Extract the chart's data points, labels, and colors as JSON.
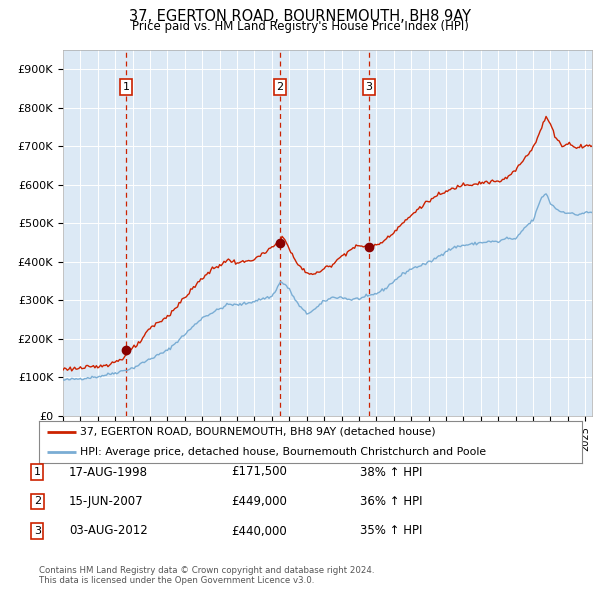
{
  "title": "37, EGERTON ROAD, BOURNEMOUTH, BH8 9AY",
  "subtitle": "Price paid vs. HM Land Registry's House Price Index (HPI)",
  "background_color": "#ffffff",
  "plot_bg_color": "#dce9f5",
  "ylim": [
    0,
    950000
  ],
  "yticks": [
    0,
    100000,
    200000,
    300000,
    400000,
    500000,
    600000,
    700000,
    800000,
    900000
  ],
  "ytick_labels": [
    "£0",
    "£100K",
    "£200K",
    "£300K",
    "£400K",
    "£500K",
    "£600K",
    "£700K",
    "£800K",
    "£900K"
  ],
  "xlim_start": 1995.0,
  "xlim_end": 2025.4,
  "sale_dates": [
    1998.622,
    2007.458,
    2012.586
  ],
  "sale_prices": [
    171500,
    449000,
    440000
  ],
  "sale_labels": [
    "1",
    "2",
    "3"
  ],
  "hpi_color": "#7aadd4",
  "price_color": "#cc2200",
  "sale_marker_color": "#880000",
  "vline_color": "#cc2200",
  "legend_entries": [
    "37, EGERTON ROAD, BOURNEMOUTH, BH8 9AY (detached house)",
    "HPI: Average price, detached house, Bournemouth Christchurch and Poole"
  ],
  "table_rows": [
    {
      "num": "1",
      "date": "17-AUG-1998",
      "price": "£171,500",
      "hpi": "38% ↑ HPI"
    },
    {
      "num": "2",
      "date": "15-JUN-2007",
      "price": "£449,000",
      "hpi": "36% ↑ HPI"
    },
    {
      "num": "3",
      "date": "03-AUG-2012",
      "price": "£440,000",
      "hpi": "35% ↑ HPI"
    }
  ],
  "footer": "Contains HM Land Registry data © Crown copyright and database right 2024.\nThis data is licensed under the Open Government Licence v3.0.",
  "xtick_years": [
    1995,
    1996,
    1997,
    1998,
    1999,
    2000,
    2001,
    2002,
    2003,
    2004,
    2005,
    2006,
    2007,
    2008,
    2009,
    2010,
    2011,
    2012,
    2013,
    2014,
    2015,
    2016,
    2017,
    2018,
    2019,
    2020,
    2021,
    2022,
    2023,
    2024,
    2025
  ]
}
